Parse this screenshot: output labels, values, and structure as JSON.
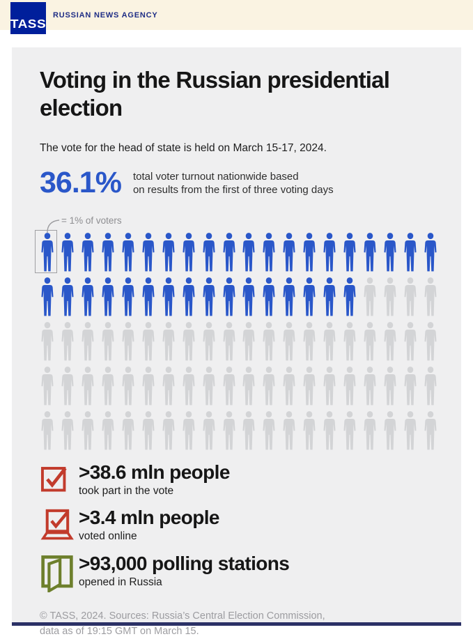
{
  "header": {
    "logo_text": "TASS",
    "agency_label": "RUSSIAN NEWS AGENCY"
  },
  "infographic": {
    "title": "Voting in the Russian presidential election",
    "subtitle": "The vote for the head of state is held on March 15-17, 2024.",
    "stat": {
      "value": "36.1%",
      "description_line1": "total voter turnout nationwide based",
      "description_line2": "on results from the first of three voting days"
    },
    "facts": [
      {
        "icon": "ballot-checkbox-icon",
        "headline": ">38.6 mln people",
        "sub": "took part in the vote",
        "color": "#c23b2c"
      },
      {
        "icon": "online-voting-laptop-icon",
        "headline": ">3.4 mln people",
        "sub": "voted online",
        "color": "#c23b2c"
      },
      {
        "icon": "open-door-icon",
        "headline": ">93,000 polling stations",
        "sub": "opened in Russia",
        "color": "#6d7f2c"
      }
    ],
    "footer_line1": "© TASS, 2024. Sources: Russia’s Central Election Commission,",
    "footer_line2": "data as of 19:15 GMT on March 15."
  },
  "chart_data": {
    "type": "pictogram",
    "title": "Total voter turnout nationwide, first of three voting days",
    "value_percent": 36.1,
    "unit_label": "= 1% of voters",
    "total_units": 100,
    "highlighted_units": 36,
    "columns": 20,
    "rows": 5,
    "highlight_color": "#2a57c9",
    "muted_color": "#d3d4d6",
    "legend_position": "top-left"
  }
}
